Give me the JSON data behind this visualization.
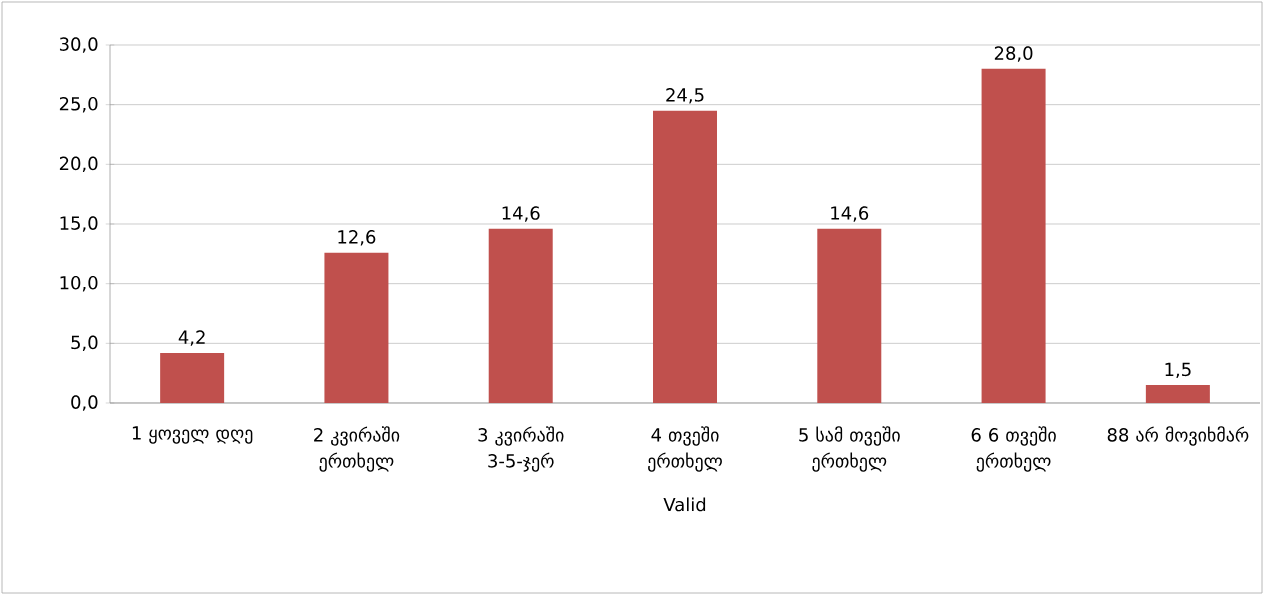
{
  "chart_data": {
    "type": "bar",
    "xlabel": "Valid",
    "categories": [
      "1 ყოველ დღე",
      "2 კვირაში ერთხელ",
      "3 კვირაში 3-5-ჯერ",
      "4 თვეში ერთხელ",
      "5 სამ თვეში ერთხელ",
      "6 6 თვეში ერთხელ",
      "88 არ მოვიხმარ"
    ],
    "values": [
      4.2,
      12.6,
      14.6,
      24.5,
      14.6,
      28.0,
      1.5
    ],
    "value_labels": [
      "4,2",
      "12,6",
      "14,6",
      "24,5",
      "14,6",
      "28,0",
      "1,5"
    ],
    "color": "#c0504d",
    "ylim": [
      0,
      30
    ],
    "yticks": [
      {
        "value": 0,
        "label": "0,0"
      },
      {
        "value": 5,
        "label": "5,0"
      },
      {
        "value": 10,
        "label": "10,0"
      },
      {
        "value": 15,
        "label": "15,0"
      },
      {
        "value": 20,
        "label": "20,0"
      },
      {
        "value": 25,
        "label": "25,0"
      },
      {
        "value": 30,
        "label": "30,0"
      }
    ],
    "grid": "y"
  }
}
